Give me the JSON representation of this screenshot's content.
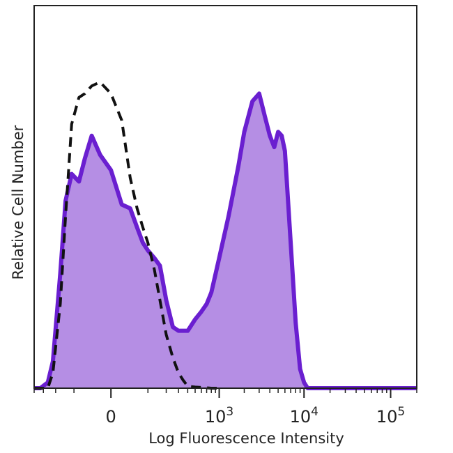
{
  "chart_data": {
    "type": "area",
    "title": "",
    "xlabel": "Log Fluorescence Intensity",
    "ylabel": "Relative Cell Number",
    "x_scale": "biexponential",
    "xlim": [
      -400,
      200000
    ],
    "ylim": [
      0,
      100
    ],
    "x_ticks": [
      {
        "value": 0,
        "base": "0",
        "exp": ""
      },
      {
        "value": 1000,
        "base": "10",
        "exp": "3"
      },
      {
        "value": 10000,
        "base": "10",
        "exp": "4"
      },
      {
        "value": 100000,
        "base": "10",
        "exp": "5"
      }
    ],
    "grid": false,
    "legend": "none",
    "series": [
      {
        "style": "filled-solid",
        "color": "#6a1fd0",
        "fill": "#b58ee4",
        "x": [
          -400,
          -330,
          -260,
          -220,
          -170,
          -140,
          -110,
          -80,
          -60,
          -40,
          -20,
          0,
          20,
          40,
          60,
          80,
          100,
          130,
          160,
          200,
          250,
          300,
          350,
          400,
          500,
          600,
          700,
          800,
          1000,
          1300,
          1700,
          2000,
          2500,
          3000,
          3500,
          4000,
          4500,
          5000,
          5500,
          6000,
          7000,
          8000,
          9000,
          10000,
          11000,
          13000,
          16000,
          20000,
          30000,
          50000,
          100000,
          200000
        ],
        "y": [
          0,
          0,
          1.5,
          7,
          30,
          49,
          56,
          54,
          60,
          66,
          61,
          57,
          48,
          47,
          42,
          38,
          36,
          34,
          32,
          23,
          16,
          15,
          15,
          15,
          18,
          20,
          22,
          25,
          34,
          45,
          58,
          67,
          75,
          77,
          71,
          66,
          63,
          67,
          66,
          62,
          38,
          17,
          5,
          1.5,
          0,
          0,
          0,
          0,
          0,
          0,
          0,
          0
        ]
      },
      {
        "style": "dashed",
        "color": "#111111",
        "x": [
          -400,
          -330,
          -260,
          -220,
          -170,
          -140,
          -110,
          -80,
          -60,
          -40,
          -20,
          0,
          20,
          40,
          60,
          80,
          100,
          130,
          160,
          200,
          250,
          300,
          350,
          400,
          500,
          600,
          800,
          1000
        ],
        "y": [
          0,
          0,
          0,
          4,
          22,
          45,
          69,
          76,
          77,
          79,
          80,
          77,
          70,
          55,
          47,
          42,
          38,
          31,
          23,
          14,
          8,
          4,
          2,
          0.5,
          0.3,
          0.2,
          0,
          0
        ]
      }
    ]
  }
}
